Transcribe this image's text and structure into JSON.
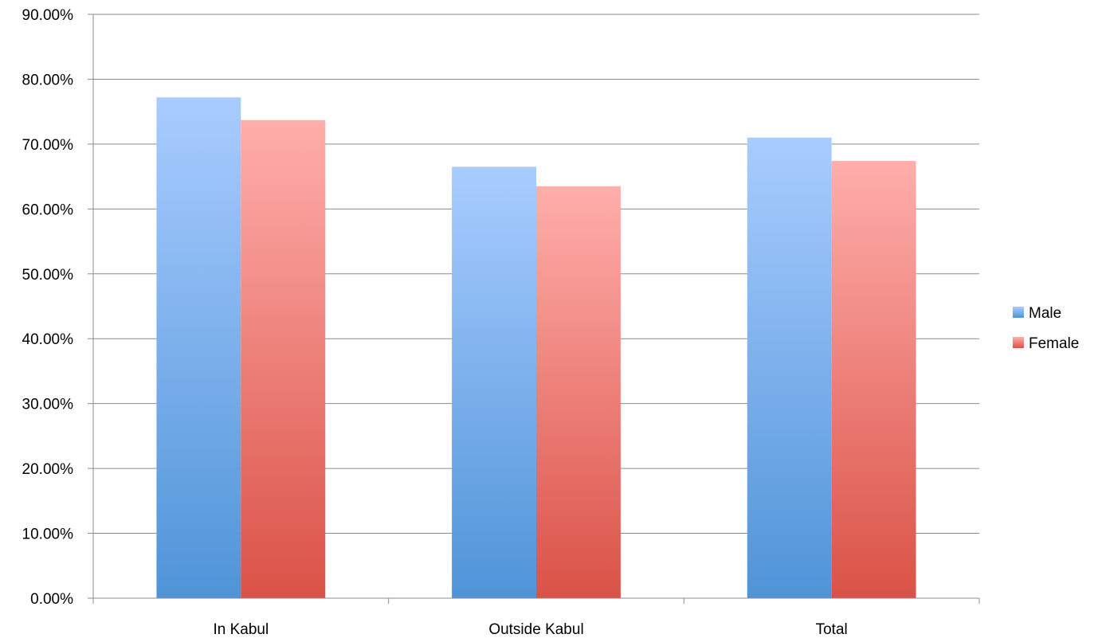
{
  "chart_data": {
    "type": "bar",
    "title": "",
    "xlabel": "",
    "ylabel": "",
    "categories": [
      "In Kabul",
      "Outside Kabul",
      "Total"
    ],
    "series": [
      {
        "name": "Male",
        "values": [
          77.2,
          66.5,
          71.0
        ],
        "color_top": "#A9CCFF",
        "color_bottom": "#4F94D8"
      },
      {
        "name": "Female",
        "values": [
          73.7,
          63.5,
          67.4
        ],
        "color_top": "#FFAEAB",
        "color_bottom": "#DA5247"
      }
    ],
    "ylim": [
      0,
      90
    ],
    "yticks": [
      0,
      10,
      20,
      30,
      40,
      50,
      60,
      70,
      80,
      90
    ],
    "ytick_labels": [
      "0.00%",
      "10.00%",
      "20.00%",
      "30.00%",
      "40.00%",
      "50.00%",
      "60.00%",
      "70.00%",
      "80.00%",
      "90.00%"
    ],
    "grid": true,
    "legend_position": "right",
    "colors": {
      "grid": "#8C8C8C",
      "axis": "#8C8C8C"
    }
  }
}
